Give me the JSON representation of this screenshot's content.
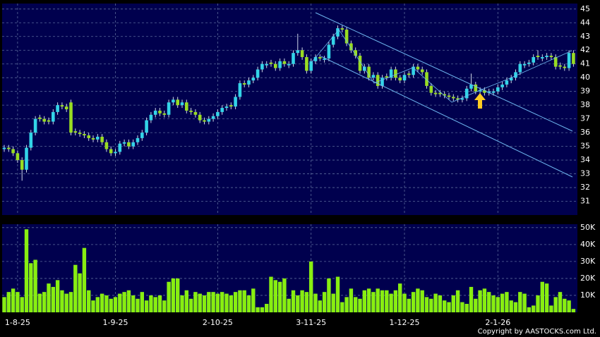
{
  "chart_data": [
    {
      "type": "candlestick",
      "up_color": "#33d4e8",
      "down_color": "#99dd22",
      "wick_color": "#cfd8e8",
      "grid": true,
      "ylim": [
        30,
        45.4
      ],
      "yticks": [
        31,
        32,
        33,
        34,
        35,
        36,
        37,
        38,
        39,
        40,
        41,
        42,
        43,
        44,
        45
      ],
      "open": [
        34.8,
        34.9,
        34.8,
        34.5,
        34.0,
        33.3,
        34.9,
        36.0,
        37.1,
        37.0,
        36.9,
        36.8,
        37.5,
        38.0,
        37.9,
        38.2,
        36.1,
        36.0,
        35.9,
        35.8,
        35.6,
        35.5,
        35.7,
        35.3,
        34.8,
        34.5,
        34.6,
        35.2,
        35.3,
        35.0,
        35.3,
        35.6,
        36.0,
        36.9,
        37.3,
        37.6,
        37.4,
        37.3,
        38.2,
        38.4,
        38.0,
        38.2,
        37.6,
        37.5,
        37.3,
        36.9,
        36.8,
        37.0,
        37.2,
        37.5,
        37.8,
        38.0,
        37.9,
        38.6,
        39.6,
        39.5,
        39.8,
        40.0,
        40.6,
        40.9,
        41.1,
        41.0,
        40.7,
        41.2,
        40.9,
        41.0,
        41.8,
        42.0,
        41.5,
        40.5,
        41.2,
        41.5,
        41.3,
        41.4,
        42.4,
        43.0,
        43.6,
        43.5,
        42.5,
        42.0,
        41.6,
        40.5,
        40.8,
        40.0,
        40.2,
        39.4,
        40.1,
        40.0,
        40.6,
        40.0,
        39.8,
        40.3,
        40.2,
        40.8,
        40.6,
        40.4,
        39.4,
        38.9,
        38.9,
        38.8,
        38.7,
        38.6,
        38.5,
        38.4,
        38.5,
        39.2,
        39.5,
        39.0,
        39.1,
        38.9,
        38.9,
        39.0,
        39.3,
        39.5,
        39.8,
        40.0,
        40.4,
        40.9,
        41.0,
        41.1,
        41.6,
        41.4,
        41.5,
        41.6,
        41.5,
        40.9,
        40.8,
        40.7,
        41.8
      ],
      "high": [
        35.1,
        35.1,
        35.0,
        34.7,
        34.2,
        35.1,
        36.2,
        37.2,
        37.3,
        37.2,
        37.1,
        37.7,
        38.2,
        38.2,
        38.1,
        38.4,
        36.3,
        36.2,
        36.1,
        36.0,
        35.8,
        35.9,
        35.9,
        35.5,
        35.0,
        34.8,
        35.4,
        35.5,
        35.5,
        35.5,
        35.8,
        36.2,
        37.1,
        37.5,
        37.8,
        37.8,
        37.6,
        38.4,
        38.6,
        38.6,
        38.4,
        38.4,
        37.8,
        37.7,
        37.5,
        37.1,
        37.2,
        37.4,
        37.7,
        38.0,
        38.1,
        38.2,
        38.8,
        39.8,
        39.8,
        40.0,
        40.2,
        40.8,
        41.2,
        41.2,
        41.3,
        41.2,
        41.4,
        41.4,
        41.2,
        42.0,
        43.2,
        42.2,
        41.7,
        41.4,
        41.7,
        41.7,
        41.6,
        42.6,
        43.2,
        43.8,
        43.8,
        43.7,
        42.7,
        42.2,
        41.8,
        41.0,
        41.0,
        40.4,
        40.4,
        40.2,
        40.3,
        40.8,
        40.8,
        40.2,
        40.4,
        40.5,
        41.0,
        41.0,
        40.8,
        40.6,
        39.6,
        39.1,
        39.1,
        39.0,
        38.9,
        38.8,
        38.7,
        38.7,
        39.4,
        40.3,
        39.7,
        39.3,
        39.3,
        39.2,
        39.2,
        39.5,
        39.7,
        40.0,
        40.2,
        40.6,
        41.2,
        41.2,
        41.3,
        41.7,
        42.0,
        41.7,
        41.8,
        41.8,
        41.7,
        41.1,
        41.0,
        42.0,
        42.0
      ],
      "low": [
        34.6,
        34.6,
        34.3,
        33.8,
        32.5,
        33.1,
        34.7,
        35.8,
        36.8,
        36.6,
        36.6,
        36.6,
        37.3,
        37.7,
        37.5,
        35.8,
        35.8,
        35.7,
        35.6,
        35.4,
        35.3,
        35.3,
        35.1,
        34.6,
        34.3,
        34.3,
        34.4,
        35.0,
        34.8,
        34.8,
        35.1,
        35.4,
        35.8,
        36.7,
        37.1,
        37.2,
        37.1,
        37.1,
        38.0,
        37.8,
        37.8,
        37.4,
        37.3,
        37.1,
        36.7,
        36.6,
        36.6,
        36.8,
        37.0,
        37.3,
        37.6,
        37.7,
        37.7,
        38.4,
        39.3,
        39.3,
        39.6,
        39.8,
        40.4,
        40.7,
        40.8,
        40.5,
        40.5,
        40.8,
        40.7,
        40.8,
        41.6,
        41.3,
        40.3,
        40.3,
        41.0,
        41.2,
        41.1,
        41.2,
        42.2,
        42.8,
        43.3,
        42.3,
        41.8,
        41.4,
        40.3,
        40.3,
        39.8,
        39.8,
        39.2,
        39.2,
        39.8,
        39.8,
        39.8,
        39.6,
        39.6,
        40.0,
        40.0,
        40.4,
        40.2,
        39.2,
        38.7,
        38.6,
        38.6,
        38.5,
        38.4,
        38.3,
        38.2,
        38.2,
        38.3,
        39.0,
        38.8,
        38.8,
        38.7,
        38.7,
        38.7,
        38.8,
        39.1,
        39.3,
        39.6,
        39.8,
        40.2,
        40.7,
        40.8,
        40.9,
        41.3,
        41.2,
        41.3,
        41.3,
        40.6,
        40.6,
        40.5,
        40.5,
        40.8
      ],
      "close": [
        34.9,
        34.8,
        34.5,
        34.0,
        33.3,
        34.9,
        36.0,
        37.0,
        37.0,
        36.8,
        36.8,
        37.5,
        38.0,
        37.9,
        37.7,
        36.0,
        36.0,
        35.9,
        35.8,
        35.6,
        35.5,
        35.7,
        35.3,
        34.8,
        34.5,
        34.6,
        35.2,
        35.3,
        35.0,
        35.3,
        35.6,
        36.0,
        36.9,
        37.3,
        37.6,
        37.4,
        37.3,
        38.2,
        38.4,
        38.0,
        38.2,
        37.6,
        37.5,
        37.3,
        36.9,
        36.8,
        37.0,
        37.2,
        37.5,
        37.8,
        37.9,
        37.9,
        38.6,
        39.6,
        39.5,
        39.8,
        40.0,
        40.6,
        41.0,
        41.0,
        41.0,
        40.7,
        41.2,
        41.0,
        41.0,
        41.8,
        42.0,
        41.5,
        40.5,
        41.2,
        41.5,
        41.4,
        41.4,
        42.4,
        43.0,
        43.6,
        43.5,
        42.5,
        42.0,
        41.6,
        40.5,
        40.8,
        40.0,
        40.2,
        39.4,
        40.0,
        40.0,
        40.6,
        40.0,
        39.8,
        40.2,
        40.2,
        40.8,
        40.6,
        40.4,
        39.4,
        38.9,
        38.8,
        38.8,
        38.7,
        38.6,
        38.5,
        38.4,
        38.5,
        39.2,
        39.5,
        39.0,
        39.1,
        38.9,
        39.0,
        39.0,
        39.3,
        39.5,
        39.8,
        40.0,
        40.4,
        41.0,
        41.0,
        41.1,
        41.5,
        41.5,
        41.5,
        41.6,
        41.5,
        40.8,
        40.8,
        40.7,
        41.8,
        41.0
      ]
    },
    {
      "type": "bar",
      "color": "#88ee11",
      "grid": true,
      "ylim": [
        0,
        52000
      ],
      "yticks": [
        {
          "value": 10000,
          "label": "10K"
        },
        {
          "value": 20000,
          "label": "20K"
        },
        {
          "value": 30000,
          "label": "30K"
        },
        {
          "value": 40000,
          "label": "40K"
        },
        {
          "value": 50000,
          "label": "50K"
        }
      ],
      "categories": [
        null,
        null,
        null,
        "1-8-25",
        null,
        null,
        null,
        null,
        null,
        null,
        null,
        null,
        null,
        null,
        null,
        null,
        null,
        null,
        null,
        null,
        null,
        null,
        null,
        null,
        null,
        "1-9-25",
        null,
        null,
        null,
        null,
        null,
        null,
        null,
        null,
        null,
        null,
        null,
        null,
        null,
        null,
        null,
        null,
        null,
        null,
        null,
        null,
        null,
        null,
        "2-10-25",
        null,
        null,
        null,
        null,
        null,
        null,
        null,
        null,
        null,
        null,
        null,
        null,
        null,
        null,
        null,
        null,
        null,
        null,
        null,
        null,
        "3-11-25",
        null,
        null,
        null,
        null,
        null,
        null,
        null,
        null,
        null,
        null,
        null,
        null,
        null,
        null,
        null,
        null,
        null,
        null,
        null,
        null,
        "1-12-25",
        null,
        null,
        null,
        null,
        null,
        null,
        null,
        null,
        null,
        null,
        null,
        null,
        null,
        null,
        null,
        null,
        null,
        null,
        null,
        null,
        "2-1-26",
        null,
        null,
        null,
        null,
        null,
        null,
        null,
        null,
        null,
        null,
        null,
        null,
        null,
        null,
        null,
        null,
        null
      ],
      "values": [
        9000,
        12000,
        14000,
        12000,
        9000,
        49000,
        29000,
        31000,
        11000,
        12000,
        17000,
        15000,
        19000,
        13000,
        11000,
        12000,
        28000,
        23000,
        38000,
        13000,
        7000,
        9000,
        11000,
        10000,
        8000,
        9000,
        11000,
        12000,
        13000,
        10000,
        8000,
        12000,
        7000,
        10000,
        9000,
        10000,
        7000,
        18000,
        20000,
        20000,
        10000,
        13000,
        8000,
        12000,
        11000,
        10000,
        12000,
        12000,
        11000,
        12000,
        11000,
        10000,
        12000,
        13000,
        13000,
        10000,
        14000,
        3000,
        3000,
        5000,
        21000,
        19000,
        18000,
        20000,
        8000,
        13000,
        10000,
        13000,
        12000,
        30000,
        11000,
        7000,
        12000,
        20000,
        11000,
        21000,
        6000,
        9000,
        14000,
        9000,
        8000,
        13000,
        14000,
        12000,
        14000,
        13000,
        13000,
        11000,
        13000,
        17000,
        11000,
        8000,
        12000,
        14000,
        13000,
        9000,
        8000,
        11000,
        10000,
        7000,
        6000,
        10000,
        13000,
        6000,
        5000,
        15000,
        8000,
        13000,
        14000,
        12000,
        10000,
        9000,
        11000,
        12000,
        7000,
        6000,
        12000,
        11000,
        3000,
        4000,
        10000,
        18000,
        17000,
        4000,
        9000,
        12000,
        8000,
        7000,
        2000
      ]
    }
  ],
  "copyright": "Copyright by AASTOCKS.com Ltd."
}
